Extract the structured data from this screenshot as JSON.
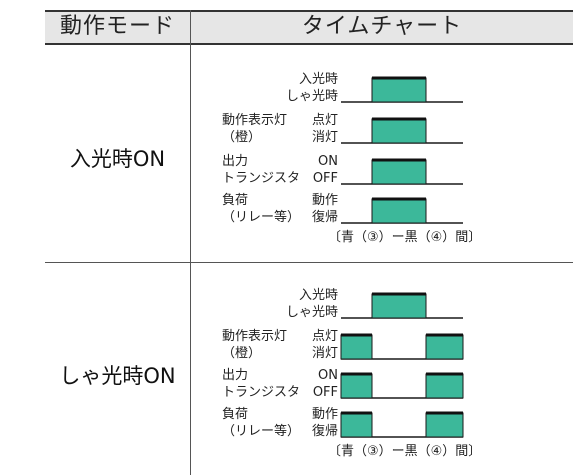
{
  "header": {
    "col1": "動作モード",
    "col2": "タイムチャート"
  },
  "colors": {
    "fill": "#3cb89a",
    "stroke": "#1a1a1a",
    "header_bg": "#e6e6e6"
  },
  "rows": [
    {
      "mode": "入光時ON",
      "signals": [
        {
          "left1": "",
          "left2": "",
          "state1": "入光時",
          "state2": "しゃ光時"
        },
        {
          "left1": "動作表示灯",
          "left2": "（橙）",
          "state1": "点灯",
          "state2": "消灯"
        },
        {
          "left1": "出力",
          "left2": "トランジスタ",
          "state1": "ON",
          "state2": "OFF"
        },
        {
          "left1": "負荷",
          "left2": "（リレー等）",
          "state1": "動作",
          "state2": "復帰"
        }
      ],
      "note": "〔青（③）ー黒（④）間〕"
    },
    {
      "mode": "しゃ光時ON",
      "signals": [
        {
          "left1": "",
          "left2": "",
          "state1": "入光時",
          "state2": "しゃ光時"
        },
        {
          "left1": "動作表示灯",
          "left2": "（橙）",
          "state1": "点灯",
          "state2": "消灯"
        },
        {
          "left1": "出力",
          "left2": "トランジスタ",
          "state1": "ON",
          "state2": "OFF"
        },
        {
          "left1": "負荷",
          "left2": "（リレー等）",
          "state1": "動作",
          "state2": "復帰"
        }
      ],
      "note": "〔青（③）ー黒（④）間〕"
    }
  ]
}
